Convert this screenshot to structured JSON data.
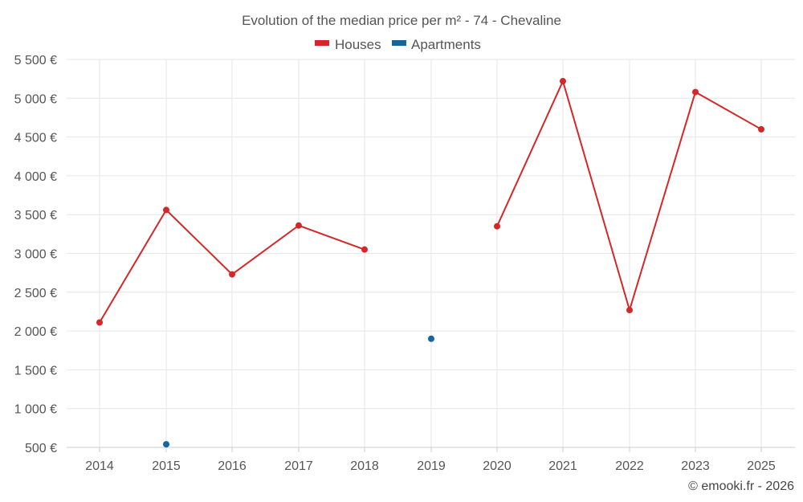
{
  "chart_data": {
    "type": "line",
    "title": "Evolution of the median price per m² - 74 - Chevaline",
    "xlabel": "",
    "ylabel": "",
    "x": [
      "2014",
      "2015",
      "2016",
      "2017",
      "2018",
      "2019",
      "2020",
      "2021",
      "2022",
      "2023",
      "2025"
    ],
    "ylim": [
      500,
      5500
    ],
    "yticks": [
      500,
      1000,
      1500,
      2000,
      2500,
      3000,
      3500,
      4000,
      4500,
      5000,
      5500
    ],
    "ytick_labels": [
      "500 €",
      "1 000 €",
      "1 500 €",
      "2 000 €",
      "2 500 €",
      "3 000 €",
      "3 500 €",
      "4 000 €",
      "4 500 €",
      "5 000 €",
      "5 500 €"
    ],
    "grid": true,
    "legend_position": "top-center",
    "series": [
      {
        "name": "Houses",
        "color": "#d62728",
        "values": [
          2110,
          3560,
          2730,
          3360,
          3050,
          null,
          3350,
          5220,
          2270,
          5080,
          4600
        ]
      },
      {
        "name": "Apartments",
        "color": "#1565a0",
        "values": [
          null,
          540,
          null,
          null,
          null,
          1900,
          null,
          null,
          null,
          null,
          null
        ]
      }
    ]
  },
  "credit": "© emooki.fr - 2026"
}
